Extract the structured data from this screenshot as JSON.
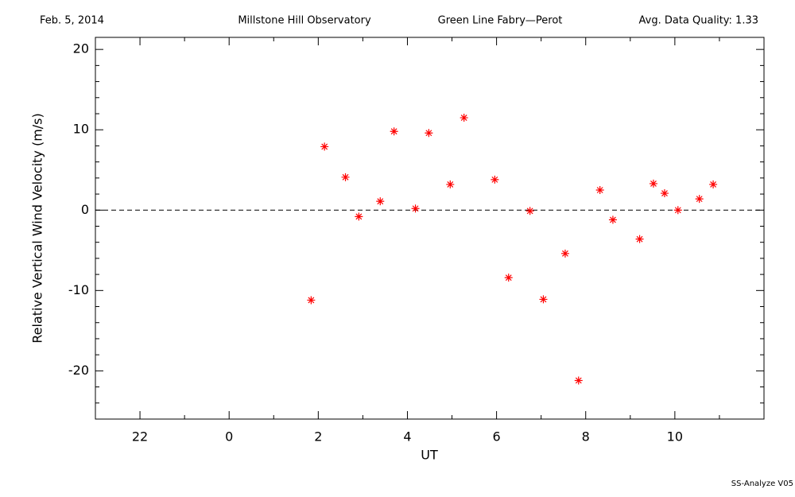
{
  "chart_data": {
    "type": "scatter",
    "header": [
      "Feb. 5, 2014",
      "Millstone Hill Observatory",
      "Green Line Fabry—Perot",
      "Avg. Data Quality: 1.33"
    ],
    "footer": "SS-Analyze V05",
    "xlabel": "UT",
    "ylabel": "Relative Vertical Wind Velocity (m/s)",
    "xlim": [
      -3,
      12
    ],
    "xticks": [
      {
        "value": -2,
        "label": "22"
      },
      0,
      2,
      4,
      6,
      8,
      10
    ],
    "xminorticks": [
      -3,
      -1,
      1,
      3,
      5,
      7,
      9,
      11
    ],
    "ylim": [
      -26,
      21.5
    ],
    "yticks": [
      -20,
      -10,
      0,
      10,
      20
    ],
    "yminorticks": [
      -24,
      -22,
      -18,
      -16,
      -14,
      -12,
      -8,
      -6,
      -4,
      -2,
      2,
      4,
      6,
      8,
      12,
      14,
      16,
      18
    ],
    "reference_line": 0,
    "series": [
      {
        "color": "#ff0000",
        "x": [
          1.84,
          2.14,
          2.61,
          2.91,
          3.39,
          3.7,
          4.18,
          4.48,
          4.96,
          5.27,
          5.96,
          6.27,
          6.75,
          7.05,
          7.54,
          7.84,
          8.32,
          8.61,
          9.21,
          9.52,
          9.77,
          10.07,
          10.55,
          10.86
        ],
        "values": [
          -11.2,
          7.9,
          4.1,
          -0.8,
          1.1,
          9.8,
          0.2,
          9.6,
          3.2,
          11.5,
          3.8,
          -8.4,
          -0.1,
          -11.1,
          -5.4,
          -21.2,
          2.5,
          -1.2,
          -3.6,
          3.3,
          2.1,
          0.0,
          1.4,
          3.2
        ]
      }
    ]
  }
}
